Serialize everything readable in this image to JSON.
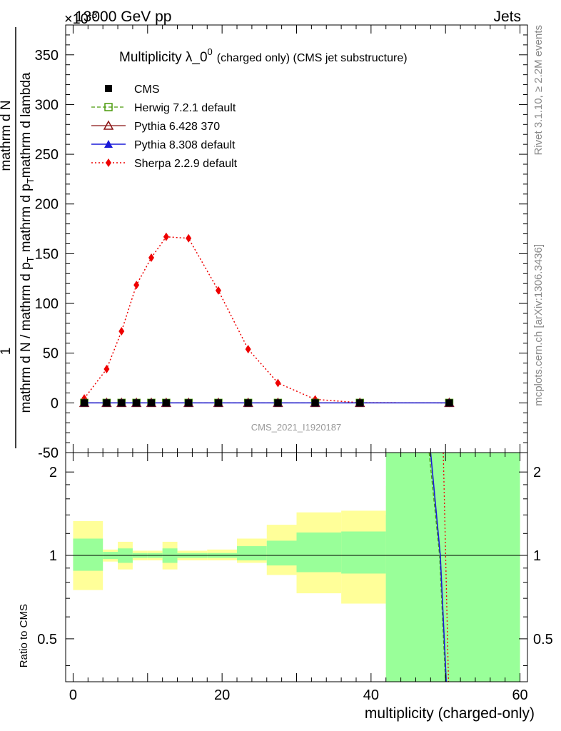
{
  "header": {
    "energy": "13000 GeV pp",
    "exp_top": "×10",
    "exp_sup": "-3",
    "process": "Jets"
  },
  "side_labels": {
    "rivet": "Rivet 3.1.10, ≥ 2.2M events",
    "mcplots": "mcplots.cern.ch [arXiv:1306.3436]"
  },
  "watermark": "CMS_2021_I1920187",
  "chart_data": [
    {
      "type": "line",
      "title": "Multiplicity λ_0",
      "title_sup": "0",
      "title_suffix": "(charged only) (CMS jet substructure)",
      "ylabel_numerator": "mathrm d N",
      "ylabel_mid": "mathrm d p",
      "ylabel_denominator": "mathrm d N / mathrm d p",
      "ylim": [
        -50,
        380
      ],
      "yticks": [
        -50,
        0,
        50,
        100,
        150,
        200,
        250,
        300,
        350
      ],
      "legend_position": "top-left",
      "series": [
        {
          "name": "CMS",
          "style": "data",
          "x": [
            1.5,
            4.5,
            6.5,
            8.5,
            10.5,
            12.5,
            15.5,
            19.5,
            23.5,
            27.5,
            32.5,
            38.5,
            50.5
          ],
          "y": [
            0,
            0,
            0,
            0,
            0,
            0,
            0,
            0,
            0,
            0,
            0,
            0,
            0
          ]
        },
        {
          "name": "Herwig 7.2.1 default",
          "style": "herwig",
          "x": [
            1.5,
            4.5,
            6.5,
            8.5,
            10.5,
            12.5,
            15.5,
            19.5,
            23.5,
            27.5,
            32.5,
            38.5,
            50.5
          ],
          "y": [
            0,
            0,
            0,
            0,
            0,
            0,
            0,
            0,
            0,
            0,
            0,
            0,
            0
          ]
        },
        {
          "name": "Pythia 6.428 370",
          "style": "py6",
          "x": [
            1.5,
            4.5,
            6.5,
            8.5,
            10.5,
            12.5,
            15.5,
            19.5,
            23.5,
            27.5,
            32.5,
            38.5,
            50.5
          ],
          "y": [
            0,
            0,
            0,
            0,
            0,
            0,
            0,
            0,
            0,
            0,
            0,
            0,
            0
          ]
        },
        {
          "name": "Pythia 8.308 default",
          "style": "py8",
          "x": [
            1.5,
            4.5,
            6.5,
            8.5,
            10.5,
            12.5,
            15.5,
            19.5,
            23.5,
            27.5,
            32.5,
            38.5,
            50.5
          ],
          "y": [
            0,
            0,
            0,
            0,
            0,
            0,
            0,
            0,
            0,
            0,
            0,
            0,
            0
          ]
        },
        {
          "name": "Sherpa 2.2.9 default",
          "style": "sherpa",
          "x": [
            1.5,
            4.5,
            6.5,
            8.5,
            10.5,
            12.5,
            15.5,
            19.5,
            23.5,
            27.5,
            32.5,
            38.5,
            50.5
          ],
          "y": [
            4.5,
            34,
            72,
            118.5,
            146,
            167,
            165.5,
            113,
            54,
            20,
            3.5,
            0.2,
            0
          ]
        }
      ]
    },
    {
      "type": "area",
      "xlabel": "multiplicity (charged-only)",
      "ylabel": "Ratio to CMS",
      "xlim": [
        -1,
        61
      ],
      "ylim": [
        0.35,
        2.35
      ],
      "log_y": true,
      "xticks": [
        0,
        20,
        40,
        60
      ],
      "yticks": [
        0.5,
        1,
        2
      ],
      "bins": [
        0,
        4,
        6,
        8,
        10,
        12,
        14,
        18,
        22,
        26,
        30,
        36,
        42,
        60
      ],
      "band_outer_low": [
        0.75,
        0.95,
        0.89,
        0.96,
        0.96,
        0.89,
        0.96,
        0.96,
        0.94,
        0.85,
        0.73,
        0.67,
        0.3
      ],
      "band_outer_high": [
        1.33,
        1.05,
        1.12,
        1.04,
        1.04,
        1.12,
        1.04,
        1.05,
        1.15,
        1.29,
        1.43,
        1.45,
        1.78
      ],
      "band_inner_low": [
        0.88,
        0.97,
        0.94,
        0.98,
        0.98,
        0.94,
        0.98,
        0.98,
        0.96,
        0.92,
        0.87,
        0.86,
        0.64
      ],
      "band_inner_high": [
        1.15,
        1.03,
        1.06,
        1.02,
        1.02,
        1.06,
        1.02,
        1.02,
        1.08,
        1.13,
        1.21,
        1.22,
        1.4
      ],
      "band_last": {
        "x0": 42,
        "x1": 60,
        "low": 0.3,
        "high": 3.0
      },
      "mc_lines": [
        {
          "name": "Herwig 7.2.1 default",
          "points": [
            [
              47.8,
              2.35
            ],
            [
              49.2,
              1.0
            ],
            [
              50.0,
              0.35
            ]
          ]
        },
        {
          "name": "Pythia 8.308 default",
          "points": [
            [
              48.0,
              2.35
            ],
            [
              49.3,
              1.0
            ],
            [
              50.1,
              0.35
            ]
          ]
        },
        {
          "name": "Sherpa 2.2.9 default",
          "points": [
            [
              49.7,
              2.35
            ],
            [
              50.4,
              0.35
            ]
          ]
        }
      ]
    }
  ],
  "colors": {
    "cms": "#000000",
    "herwig": "#4a9a0a",
    "pythia6": "#8b1515",
    "pythia8": "#1a1ad8",
    "sherpa": "#ee0000",
    "band_outer": "#ffff99",
    "band_inner": "#99ff99"
  }
}
